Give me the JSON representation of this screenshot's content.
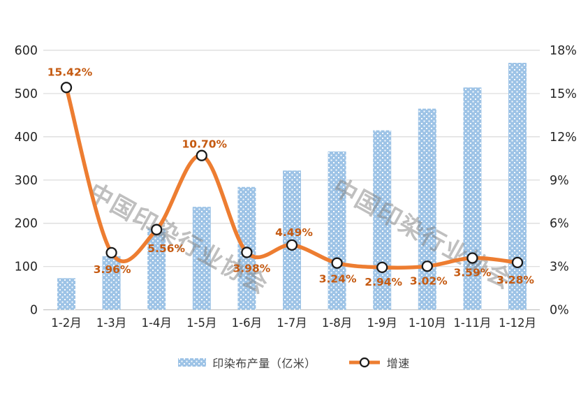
{
  "chart_data": {
    "type": "combo-bar-line",
    "title": "",
    "categories": [
      "1-2月",
      "1-3月",
      "1-4月",
      "1-5月",
      "1-6月",
      "1-7月",
      "1-8月",
      "1-9月",
      "1-10月",
      "1-11月",
      "1-12月"
    ],
    "series": [
      {
        "name": "印染布产量（亿米）",
        "type": "bar",
        "axis": "left",
        "values": [
          73,
          124,
          188,
          238,
          284,
          322,
          366,
          415,
          465,
          514,
          571
        ]
      },
      {
        "name": "增速",
        "type": "line",
        "axis": "right",
        "values_percent": [
          15.42,
          3.96,
          5.56,
          10.7,
          3.98,
          4.49,
          3.24,
          2.94,
          3.02,
          3.59,
          3.28
        ],
        "data_labels": [
          "15.42%",
          "3.96%",
          "5.56%",
          "10.70%",
          "3.98%",
          "4.49%",
          "3.24%",
          "2.94%",
          "3.02%",
          "3.59%",
          "3.28%"
        ]
      }
    ],
    "left_axis": {
      "min": 0,
      "max": 600,
      "step": 100,
      "ticks": [
        "0",
        "100",
        "200",
        "300",
        "400",
        "500",
        "600"
      ]
    },
    "right_axis": {
      "min_percent": 0,
      "max_percent": 18,
      "step_percent": 3,
      "ticks": [
        "0%",
        "3%",
        "6%",
        "9%",
        "12%",
        "15%",
        "18%"
      ]
    },
    "grid": true,
    "legend_position": "bottom"
  },
  "watermark": {
    "text": "中国印染行业协会",
    "count": 2
  },
  "colors": {
    "bar_fill": "#9dc3e6",
    "bar_dot": "#ffffff",
    "line": "#ed7d31",
    "marker_fill": "#ffffff",
    "marker_stroke": "#1a1a1a",
    "data_label": "#c55a11",
    "tick_text": "#262626",
    "category_text": "#262626",
    "grid": "#d9d9d9",
    "axis_line": "#c9c9c9",
    "watermark": "#808080",
    "background": "#ffffff"
  }
}
